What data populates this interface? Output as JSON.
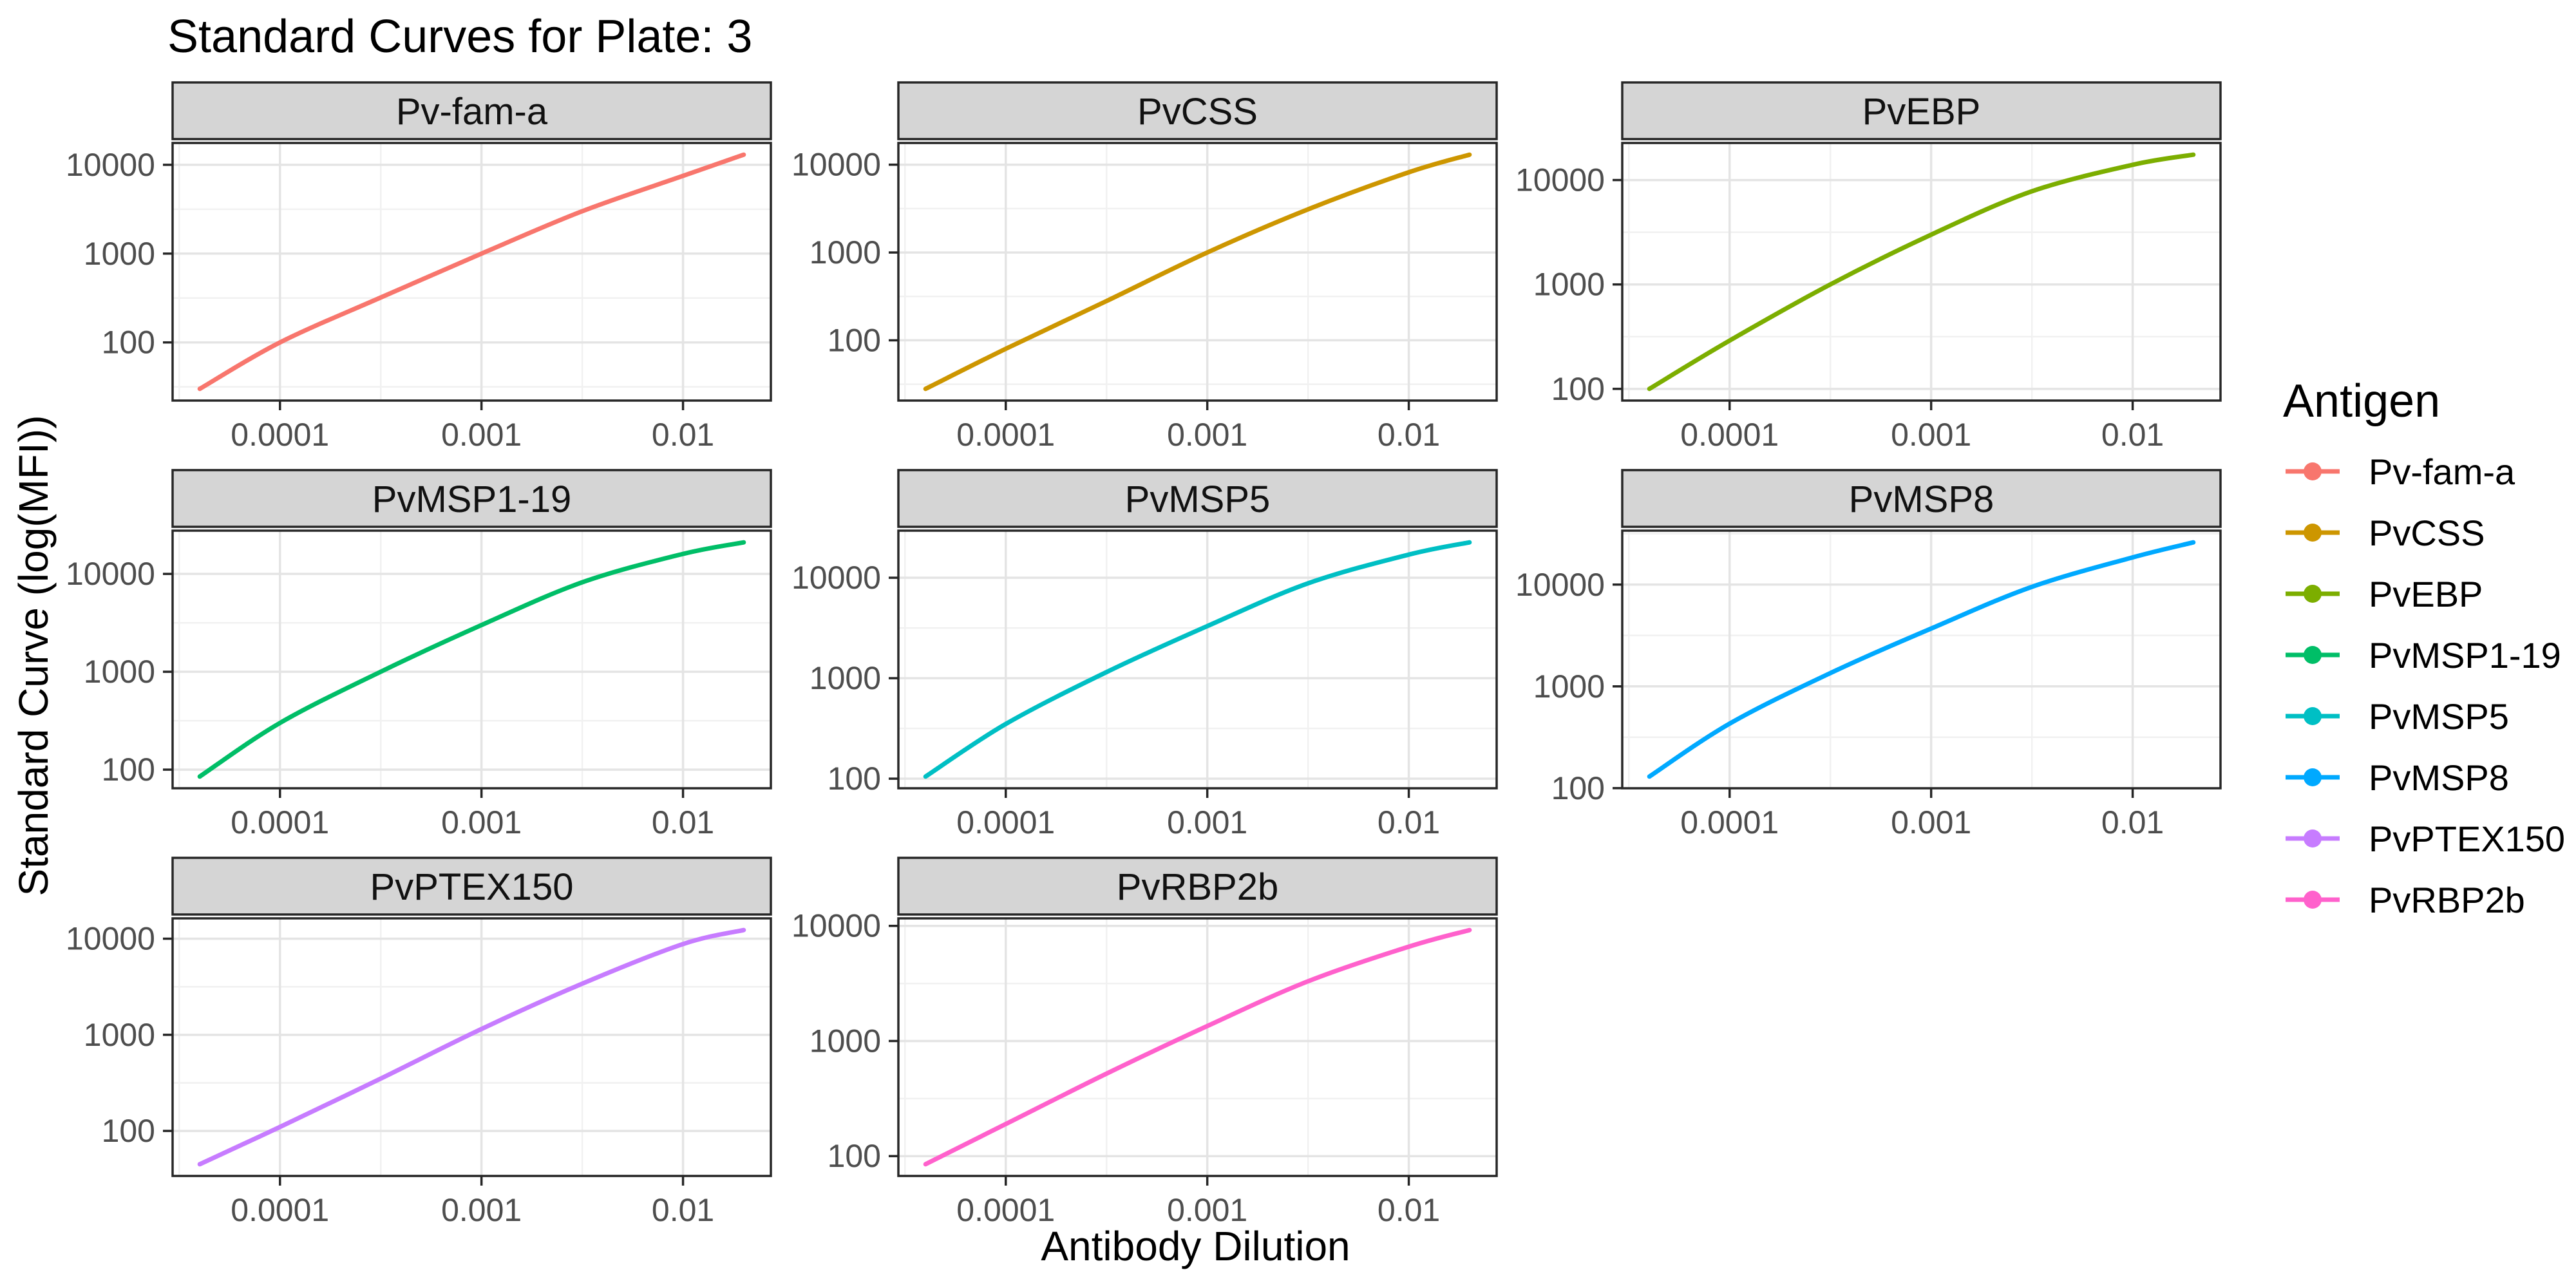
{
  "plot": {
    "title": "Standard Curves for Plate: 3",
    "x_axis_title": "Antibody Dilution",
    "y_axis_title": "Standard Curve (log(MFI))"
  },
  "legend": {
    "title": "Antigen",
    "entries": [
      {
        "label": "Pv-fam-a",
        "color": "#F8766D"
      },
      {
        "label": "PvCSS",
        "color": "#CD9600"
      },
      {
        "label": "PvEBP",
        "color": "#7CAE00"
      },
      {
        "label": "PvMSP1-19",
        "color": "#00BE67"
      },
      {
        "label": "PvMSP5",
        "color": "#00BFC4"
      },
      {
        "label": "PvMSP8",
        "color": "#00A9FF"
      },
      {
        "label": "PvPTEX150",
        "color": "#C77CFF"
      },
      {
        "label": "PvRBP2b",
        "color": "#FF61CC"
      }
    ]
  },
  "chart_data": {
    "type": "line",
    "title": "Standard Curves for Plate: 3",
    "xlabel": "Antibody Dilution",
    "ylabel": "Standard Curve (log(MFI))",
    "x_scale": "log10",
    "y_scale": "log10",
    "scales": "free",
    "grid": "major+minor",
    "legend_position": "right",
    "legend_title": "Antigen",
    "x_axis_ticks": {
      "values": [
        0.0001,
        0.001,
        0.01
      ],
      "labels": [
        "0.0001",
        "0.001",
        "0.01"
      ]
    },
    "y_axis_ticks": {
      "values": [
        100,
        1000,
        10000
      ],
      "labels": [
        "100",
        "1000",
        "10000"
      ]
    },
    "x_range_data": [
      4e-05,
      0.02
    ],
    "x": [
      4e-05,
      0.0001,
      0.000316,
      0.001,
      0.00316,
      0.01,
      0.02
    ],
    "facets": [
      {
        "name": "Pv-fam-a",
        "color": "#F8766D",
        "y": [
          30,
          100,
          320,
          1000,
          3000,
          7500,
          13000
        ]
      },
      {
        "name": "PvCSS",
        "color": "#CD9600",
        "y": [
          28,
          80,
          280,
          1000,
          3100,
          8200,
          13000
        ]
      },
      {
        "name": "PvEBP",
        "color": "#7CAE00",
        "y": [
          100,
          290,
          1000,
          3000,
          7800,
          14000,
          17500
        ]
      },
      {
        "name": "PvMSP1-19",
        "color": "#00BE67",
        "y": [
          85,
          300,
          1000,
          3000,
          8200,
          16000,
          21000
        ]
      },
      {
        "name": "PvMSP5",
        "color": "#00BFC4",
        "y": [
          105,
          350,
          1150,
          3300,
          8800,
          17000,
          22500
        ]
      },
      {
        "name": "PvMSP8",
        "color": "#00A9FF",
        "y": [
          130,
          430,
          1350,
          3700,
          9500,
          18500,
          26000
        ]
      },
      {
        "name": "PvPTEX150",
        "color": "#C77CFF",
        "y": [
          45,
          110,
          350,
          1150,
          3400,
          8800,
          12300
        ]
      },
      {
        "name": "PvRBP2b",
        "color": "#FF61CC",
        "y": [
          85,
          190,
          520,
          1350,
          3300,
          6600,
          9200
        ]
      }
    ]
  }
}
